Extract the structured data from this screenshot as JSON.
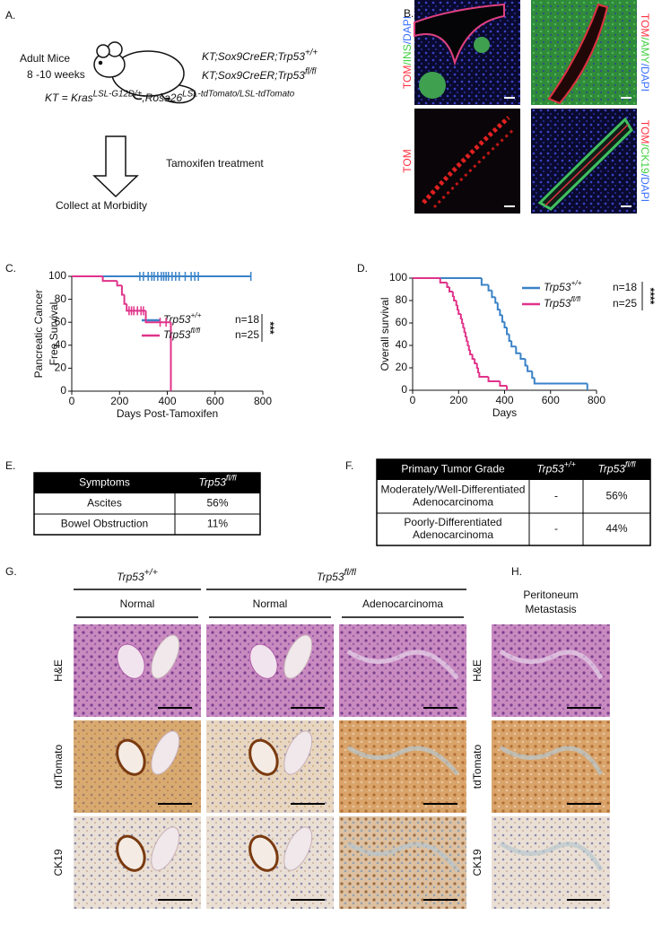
{
  "panel_labels": [
    "A.",
    "B.",
    "C.",
    "D.",
    "E.",
    "F.",
    "G.",
    "H."
  ],
  "panel_a": {
    "mouse_label": [
      "Adult Mice",
      "8 -10 weeks"
    ],
    "genotypes": [
      {
        "base": "KT;Sox9CreER;Trp53",
        "sup": "+/+"
      },
      {
        "base": "KT;Sox9CreER;Trp53",
        "sup": "fl/fl"
      }
    ],
    "kt_definition": [
      {
        "text": "KT = Kras"
      },
      {
        "sup": "LSL-G12D/+"
      },
      {
        "text": ";Rosa26"
      },
      {
        "sup": "LSL-tdTomato/LSL-tdTomato"
      }
    ],
    "treatment": "Tamoxifen treatment",
    "endpoint": "Collect at Morbidity"
  },
  "panel_b": {
    "images": [
      {
        "label": [
          "TOM",
          "/INS",
          "/DAPI"
        ]
      },
      {
        "label": [
          "TOM",
          "/AMY",
          "/DAPI"
        ]
      },
      {
        "label": [
          "TOM"
        ]
      },
      {
        "label": [
          "TOM",
          "/CK19",
          "/DAPI"
        ]
      }
    ]
  },
  "chart_data": [
    {
      "type": "survival",
      "ylabel": [
        "Pancreatic Cancer",
        "Free Survival"
      ],
      "xlabel": "Days Post-Tamoxifen",
      "xlim": [
        0,
        800
      ],
      "xticks": [
        0,
        200,
        400,
        600,
        800
      ],
      "ylim": [
        0,
        100
      ],
      "yticks": [
        0,
        20,
        40,
        60,
        80,
        100
      ],
      "significance": "***",
      "series": [
        {
          "name": "Trp53",
          "name_sup": "+/+",
          "n_label": "n=18",
          "color": "#3a82c8",
          "x": [
            0,
            750
          ],
          "values": [
            100,
            100
          ],
          "censored_x": [
            285,
            300,
            320,
            335,
            345,
            360,
            375,
            385,
            395,
            405,
            420,
            435,
            450,
            475,
            500,
            515,
            530,
            750
          ]
        },
        {
          "name": "Trp53",
          "name_sup": "fl/fl",
          "n_label": "n=25",
          "color": "#e0338a",
          "x": [
            0,
            130,
            190,
            210,
            220,
            230,
            310,
            415
          ],
          "values": [
            100,
            96,
            92,
            84,
            76,
            70,
            60,
            0
          ],
          "censored_x": [
            240,
            250,
            260,
            275,
            290,
            300,
            370,
            395
          ]
        }
      ]
    },
    {
      "type": "survival",
      "ylabel": [
        "Overall survival"
      ],
      "xlabel": "Days",
      "xlim": [
        0,
        800
      ],
      "xticks": [
        0,
        200,
        400,
        600,
        800
      ],
      "ylim": [
        0,
        100
      ],
      "yticks": [
        0,
        20,
        40,
        60,
        80,
        100
      ],
      "significance": "****",
      "series": [
        {
          "name": "Trp53",
          "name_sup": "+/+",
          "n_label": "n=18",
          "color": "#3a82c8",
          "x": [
            0,
            300,
            330,
            345,
            360,
            370,
            380,
            390,
            400,
            410,
            420,
            430,
            450,
            470,
            490,
            500,
            520,
            530,
            760
          ],
          "values": [
            100,
            94,
            89,
            83,
            78,
            72,
            67,
            61,
            56,
            50,
            44,
            39,
            33,
            28,
            22,
            17,
            11,
            6,
            0
          ],
          "censored_x": []
        },
        {
          "name": "Trp53",
          "name_sup": "fl/fl",
          "n_label": "n=25",
          "color": "#e0338a",
          "x": [
            0,
            120,
            150,
            160,
            175,
            180,
            190,
            195,
            200,
            210,
            215,
            220,
            225,
            230,
            235,
            240,
            245,
            250,
            260,
            270,
            280,
            285,
            290,
            330,
            380,
            410
          ],
          "values": [
            100,
            96,
            92,
            88,
            84,
            80,
            76,
            72,
            68,
            64,
            60,
            56,
            52,
            48,
            44,
            40,
            36,
            32,
            28,
            24,
            20,
            16,
            12,
            8,
            4,
            0
          ],
          "censored_x": []
        }
      ]
    }
  ],
  "table_e": {
    "header": [
      "Symptoms",
      {
        "base": "Trp53",
        "sup": "fl/fl"
      }
    ],
    "rows": [
      [
        "Ascites",
        "56%"
      ],
      [
        "Bowel Obstruction",
        "11%"
      ]
    ]
  },
  "table_f": {
    "header": [
      "Primary Tumor Grade",
      {
        "base": "Trp53",
        "sup": "+/+"
      },
      {
        "base": "Trp53",
        "sup": "fl/fl"
      }
    ],
    "rows": [
      [
        [
          "Moderately/Well-Differentiated",
          "Adenocarcinoma"
        ],
        "-",
        "56%"
      ],
      [
        [
          "Poorly-Differentiated",
          "Adenocarcinoma"
        ],
        "-",
        "44%"
      ]
    ]
  },
  "panel_g": {
    "group_headers": [
      {
        "base": "Trp53",
        "sup": "+/+"
      },
      {
        "base": "Trp53",
        "sup": "fl/fl"
      }
    ],
    "column_headers": [
      "Normal",
      "Normal",
      "Adenocarcinoma"
    ],
    "row_labels": [
      "H&E",
      "tdTomato",
      "CK19"
    ]
  },
  "panel_h": {
    "header": [
      "Peritoneum",
      "Metastasis"
    ],
    "row_labels": [
      "H&E",
      "tdTomato",
      "CK19"
    ]
  }
}
